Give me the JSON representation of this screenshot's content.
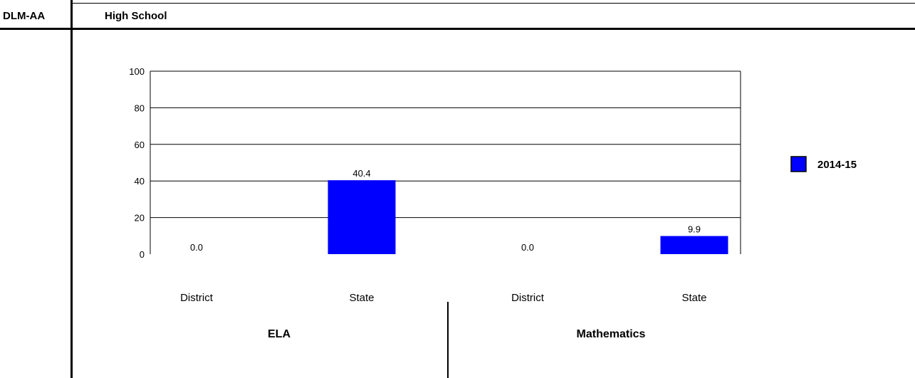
{
  "header": {
    "left_label": "DLM-AA",
    "right_label": "High School"
  },
  "chart_data": {
    "type": "bar",
    "groups": [
      {
        "label": "ELA",
        "categories": [
          "District",
          "State"
        ],
        "values": [
          0.0,
          40.4
        ],
        "value_labels": [
          "0.0",
          "40.4"
        ]
      },
      {
        "label": "Mathematics",
        "categories": [
          "District",
          "State"
        ],
        "values": [
          0.0,
          9.9
        ],
        "value_labels": [
          "0.0",
          "9.9"
        ]
      }
    ],
    "series": [
      {
        "name": "2014-15",
        "color": "#0000ff"
      }
    ],
    "ylim": [
      0,
      100
    ],
    "yticks": [
      "0",
      "20",
      "40",
      "60",
      "80",
      "100"
    ],
    "grid": true,
    "legend_position": "right"
  }
}
